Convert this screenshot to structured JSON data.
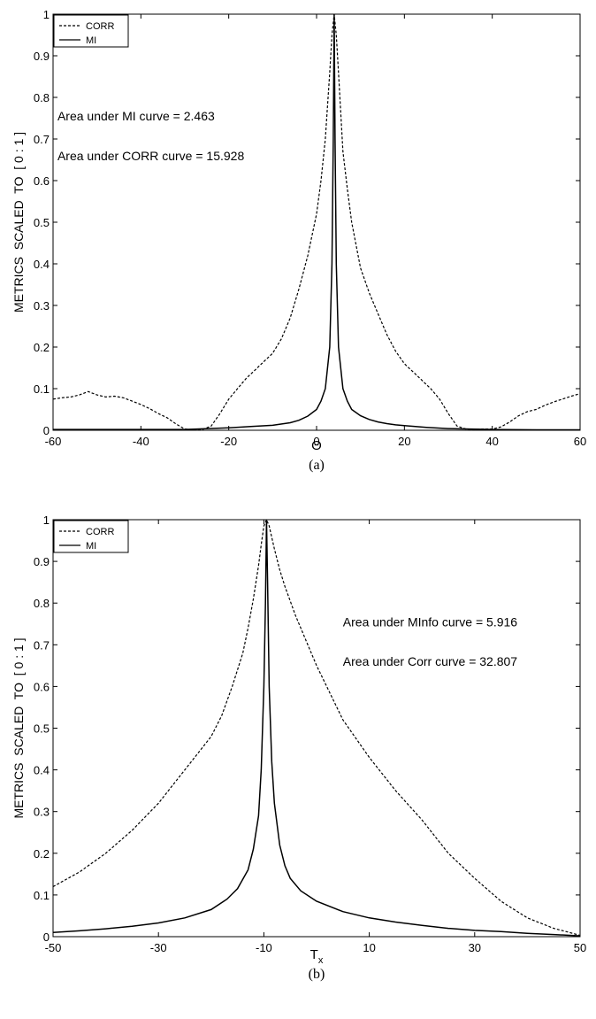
{
  "chart_data": [
    {
      "type": "line",
      "panel_label": "(a)",
      "xlabel": "Θ",
      "ylabel": "METRICS  SCALED  TO  [ 0 : 1 ]",
      "xlim": [
        -60,
        60
      ],
      "ylim": [
        0,
        1
      ],
      "xticks": [
        -60,
        -40,
        -20,
        0,
        20,
        40,
        60
      ],
      "yticks": [
        0,
        0.1,
        0.2,
        0.3,
        0.4,
        0.5,
        0.6,
        0.7,
        0.8,
        0.9,
        1
      ],
      "grid": false,
      "legend_position": "top-left",
      "annotations": [
        {
          "text": "Area under MI curve =  2.463",
          "x": -59,
          "y": 0.755
        },
        {
          "text": "Area under CORR curve = 15.928",
          "x": -59,
          "y": 0.66
        }
      ],
      "series": [
        {
          "name": "CORR",
          "style": "dashed",
          "x": [
            -60,
            -58,
            -56,
            -54,
            -52,
            -50,
            -48,
            -46,
            -44,
            -42,
            -40,
            -38,
            -36,
            -34,
            -32,
            -30,
            -28,
            -26,
            -24,
            -22,
            -20,
            -18,
            -16,
            -14,
            -12,
            -10,
            -8,
            -6,
            -4,
            -2,
            0,
            1,
            2,
            3,
            3.5,
            4,
            4.5,
            5,
            6,
            7,
            8,
            10,
            12,
            14,
            16,
            18,
            20,
            22,
            24,
            26,
            28,
            30,
            32,
            34,
            36,
            38,
            40,
            42,
            44,
            46,
            48,
            50,
            52,
            54,
            56,
            58,
            60
          ],
          "y": [
            0.075,
            0.078,
            0.08,
            0.085,
            0.093,
            0.085,
            0.08,
            0.082,
            0.078,
            0.07,
            0.062,
            0.052,
            0.04,
            0.03,
            0.015,
            0.003,
            0.001,
            0.002,
            0.01,
            0.04,
            0.075,
            0.1,
            0.125,
            0.145,
            0.165,
            0.185,
            0.22,
            0.27,
            0.34,
            0.42,
            0.52,
            0.6,
            0.7,
            0.86,
            0.95,
            1.0,
            0.95,
            0.86,
            0.67,
            0.58,
            0.5,
            0.39,
            0.33,
            0.28,
            0.23,
            0.19,
            0.16,
            0.14,
            0.12,
            0.1,
            0.075,
            0.04,
            0.01,
            0.003,
            0.002,
            0.003,
            0.003,
            0.008,
            0.02,
            0.035,
            0.045,
            0.05,
            0.06,
            0.068,
            0.075,
            0.082,
            0.088
          ]
        },
        {
          "name": "MI",
          "style": "solid",
          "x": [
            -60,
            -50,
            -40,
            -30,
            -20,
            -15,
            -10,
            -6,
            -4,
            -2,
            0,
            1,
            2,
            3,
            3.5,
            3.8,
            4,
            4.2,
            4.5,
            5,
            6,
            7,
            8,
            10,
            12,
            14,
            16,
            18,
            20,
            25,
            30,
            40,
            50,
            60
          ],
          "y": [
            0.002,
            0.002,
            0.002,
            0.002,
            0.006,
            0.009,
            0.012,
            0.018,
            0.024,
            0.034,
            0.05,
            0.07,
            0.1,
            0.2,
            0.4,
            0.7,
            1.0,
            0.7,
            0.4,
            0.2,
            0.1,
            0.07,
            0.05,
            0.035,
            0.026,
            0.02,
            0.016,
            0.013,
            0.011,
            0.007,
            0.004,
            0.002,
            0.001,
            0.001
          ]
        }
      ]
    },
    {
      "type": "line",
      "panel_label": "(b)",
      "xlabel": "T",
      "xlabel_sub": "x",
      "ylabel": "METRICS  SCALED  TO  [ 0 : 1 ]",
      "xlim": [
        -50,
        50
      ],
      "ylim": [
        0,
        1
      ],
      "xticks": [
        -50,
        -30,
        -10,
        10,
        30,
        50
      ],
      "yticks": [
        0,
        0.1,
        0.2,
        0.3,
        0.4,
        0.5,
        0.6,
        0.7,
        0.8,
        0.9,
        1
      ],
      "grid": false,
      "legend_position": "top-left",
      "annotations": [
        {
          "text": "Area under MInfo curve =  5.916",
          "x": 5,
          "y": 0.755
        },
        {
          "text": "Area under Corr curve = 32.807",
          "x": 5,
          "y": 0.66
        }
      ],
      "series": [
        {
          "name": "CORR",
          "style": "dashed",
          "x": [
            -50,
            -45,
            -40,
            -35,
            -30,
            -25,
            -20,
            -18,
            -16,
            -14,
            -13,
            -12,
            -11,
            -10.5,
            -10,
            -9.5,
            -9,
            -8,
            -7,
            -6,
            -4,
            -2,
            0,
            5,
            10,
            15,
            20,
            25,
            30,
            35,
            40,
            45,
            48,
            50
          ],
          "y": [
            0.12,
            0.155,
            0.2,
            0.255,
            0.32,
            0.4,
            0.48,
            0.53,
            0.6,
            0.68,
            0.74,
            0.81,
            0.89,
            0.94,
            0.985,
            1.0,
            0.985,
            0.93,
            0.88,
            0.84,
            0.77,
            0.71,
            0.65,
            0.52,
            0.43,
            0.35,
            0.28,
            0.2,
            0.14,
            0.085,
            0.045,
            0.02,
            0.01,
            0.003
          ]
        },
        {
          "name": "MI",
          "style": "solid",
          "x": [
            -50,
            -45,
            -40,
            -35,
            -30,
            -25,
            -20,
            -17,
            -15,
            -13,
            -12,
            -11,
            -10.5,
            -10,
            -9.7,
            -9.5,
            -9.3,
            -9,
            -8.5,
            -8,
            -7,
            -6,
            -5,
            -3,
            0,
            5,
            10,
            15,
            20,
            25,
            30,
            35,
            40,
            45,
            50
          ],
          "y": [
            0.01,
            0.014,
            0.019,
            0.025,
            0.033,
            0.045,
            0.065,
            0.09,
            0.115,
            0.16,
            0.21,
            0.29,
            0.4,
            0.6,
            0.8,
            1.0,
            0.85,
            0.6,
            0.42,
            0.32,
            0.22,
            0.17,
            0.14,
            0.11,
            0.085,
            0.06,
            0.045,
            0.035,
            0.027,
            0.02,
            0.015,
            0.012,
            0.008,
            0.005,
            0.002
          ]
        }
      ]
    }
  ]
}
